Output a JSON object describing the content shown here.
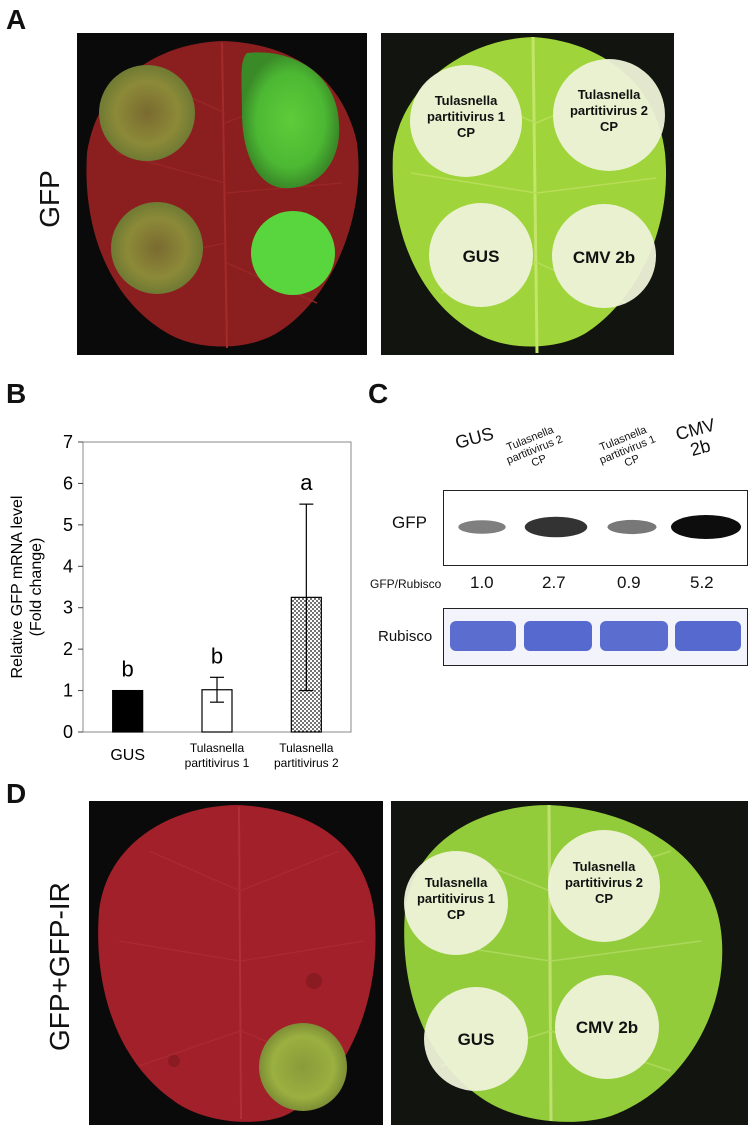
{
  "panels": {
    "a": {
      "letter": "A",
      "side_label": "GFP",
      "spots": {
        "tp1": "Tulasnella\npartitivirus 1\nCP",
        "tp2": "Tulasnella\npartitivirus 2\nCP",
        "gus": "GUS",
        "cmv": "CMV 2b"
      }
    },
    "b": {
      "letter": "B"
    },
    "c": {
      "letter": "C",
      "lanes": [
        "GUS",
        "Tulasnella\npartitivirus 2\nCP",
        "Tulasnella\npartitivirus 1\nCP",
        "CMV\n2b"
      ],
      "gfp_label": "GFP",
      "ratio_label": "GFP/Rubisco",
      "ratios": [
        "1.0",
        "2.7",
        "0.9",
        "5.2"
      ],
      "rubisco_label": "Rubisco",
      "band_intensity": [
        0.25,
        0.75,
        0.3,
        1.0
      ]
    },
    "d": {
      "letter": "D",
      "side_label": "GFP+GFP-IR",
      "spots": {
        "tp1": "Tulasnella\npartitivirus 1\nCP",
        "tp2": "Tulasnella\npartitivirus 2\nCP",
        "gus": "GUS",
        "cmv": "CMV 2b"
      }
    }
  },
  "chart_data": {
    "type": "bar",
    "categories": [
      "GUS",
      "Tulasnella\npartitivirus 1\nCP",
      "Tulasnella\npartitivirus 2\nCP"
    ],
    "values": [
      1.0,
      1.02,
      3.25
    ],
    "error": [
      0.0,
      0.3,
      2.25
    ],
    "significance": [
      "b",
      "b",
      "a"
    ],
    "fills": [
      "solid",
      "open",
      "dotted"
    ],
    "ylabel": "Relative GFP mRNA level\n(Fold change)",
    "xlabel": "",
    "ylim": [
      0,
      7
    ],
    "yticks": [
      "0",
      "1",
      "2",
      "3",
      "4",
      "5",
      "6",
      "7"
    ],
    "grid": false
  }
}
